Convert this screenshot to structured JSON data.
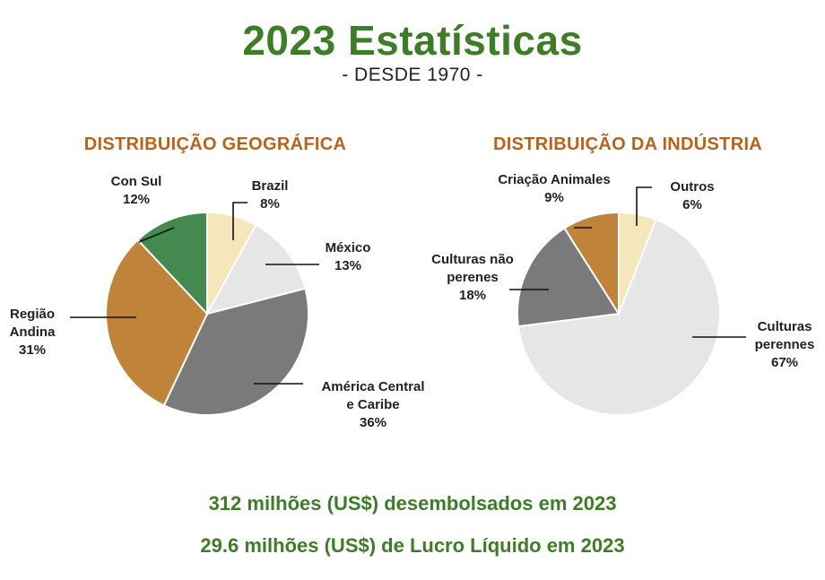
{
  "header": {
    "title": "2023 Estatísticas",
    "subtitle": "- DESDE 1970 -"
  },
  "chart_data": [
    {
      "type": "pie",
      "title": "DISTRIBUIÇÃO GEOGRÁFICA",
      "slices": [
        {
          "label": [
            "Brazil"
          ],
          "value": 8,
          "display": "8%",
          "color": "#f5e6bb"
        },
        {
          "label": [
            "México"
          ],
          "value": 13,
          "display": "13%",
          "color": "#e6e6e6"
        },
        {
          "label": [
            "América Central",
            "e Caribe"
          ],
          "value": 36,
          "display": "36%",
          "color": "#7a7a7a"
        },
        {
          "label": [
            "Região",
            "Andina"
          ],
          "value": 31,
          "display": "31%",
          "color": "#bf843a"
        },
        {
          "label": [
            "Con Sul"
          ],
          "value": 12,
          "display": "12%",
          "color": "#448a50"
        }
      ]
    },
    {
      "type": "pie",
      "title": "DISTRIBUIÇÃO DA INDÚSTRIA",
      "slices": [
        {
          "label": [
            "Outros"
          ],
          "value": 6,
          "display": "6%",
          "color": "#f5e6bb"
        },
        {
          "label": [
            "Culturas",
            "perennes"
          ],
          "value": 67,
          "display": "67%",
          "color": "#e6e6e6"
        },
        {
          "label": [
            "Culturas não",
            "perenes"
          ],
          "value": 18,
          "display": "18%",
          "color": "#7a7a7a"
        },
        {
          "label": [
            "Criação Animales"
          ],
          "value": 9,
          "display": "9%",
          "color": "#bf843a"
        }
      ]
    }
  ],
  "footer": {
    "line1": "312 milhões (US$) desembolsados em 2023",
    "line2": "29.6 milhões (US$) de Lucro Líquido em 2023"
  }
}
